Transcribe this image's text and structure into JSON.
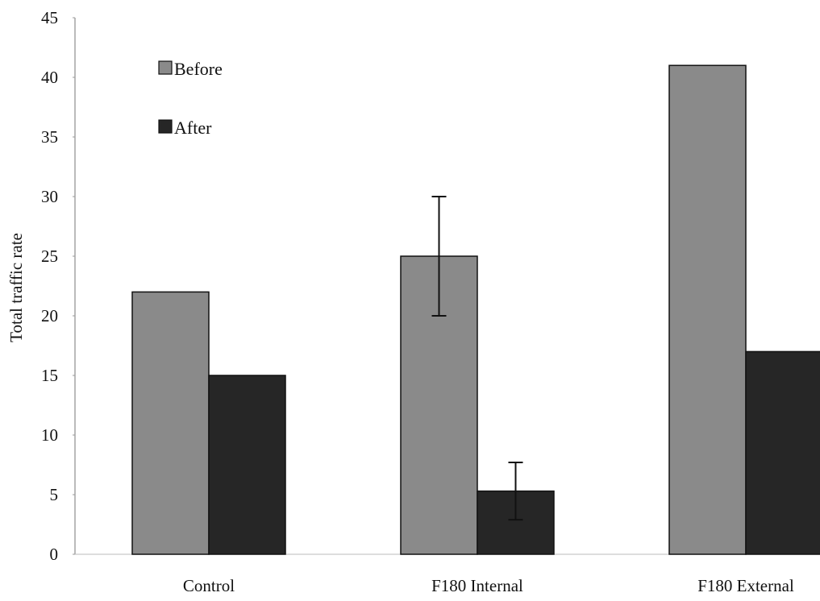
{
  "chart_data": {
    "type": "bar",
    "title": "",
    "xlabel": "",
    "ylabel": "Total traffic rate",
    "ylim": [
      0,
      45
    ],
    "yticks": [
      0,
      5,
      10,
      15,
      20,
      25,
      30,
      35,
      40,
      45
    ],
    "grid": false,
    "legend_position": "top-left",
    "categories": [
      "Control",
      "F180 Internal",
      "F180 External"
    ],
    "series": [
      {
        "name": "Before",
        "color": "#8a8a8a",
        "values": [
          22,
          25,
          41
        ],
        "error": [
          null,
          5,
          null
        ]
      },
      {
        "name": "After",
        "color": "#262626",
        "values": [
          15,
          5.3,
          17
        ],
        "error": [
          null,
          2.4,
          null
        ]
      }
    ]
  }
}
